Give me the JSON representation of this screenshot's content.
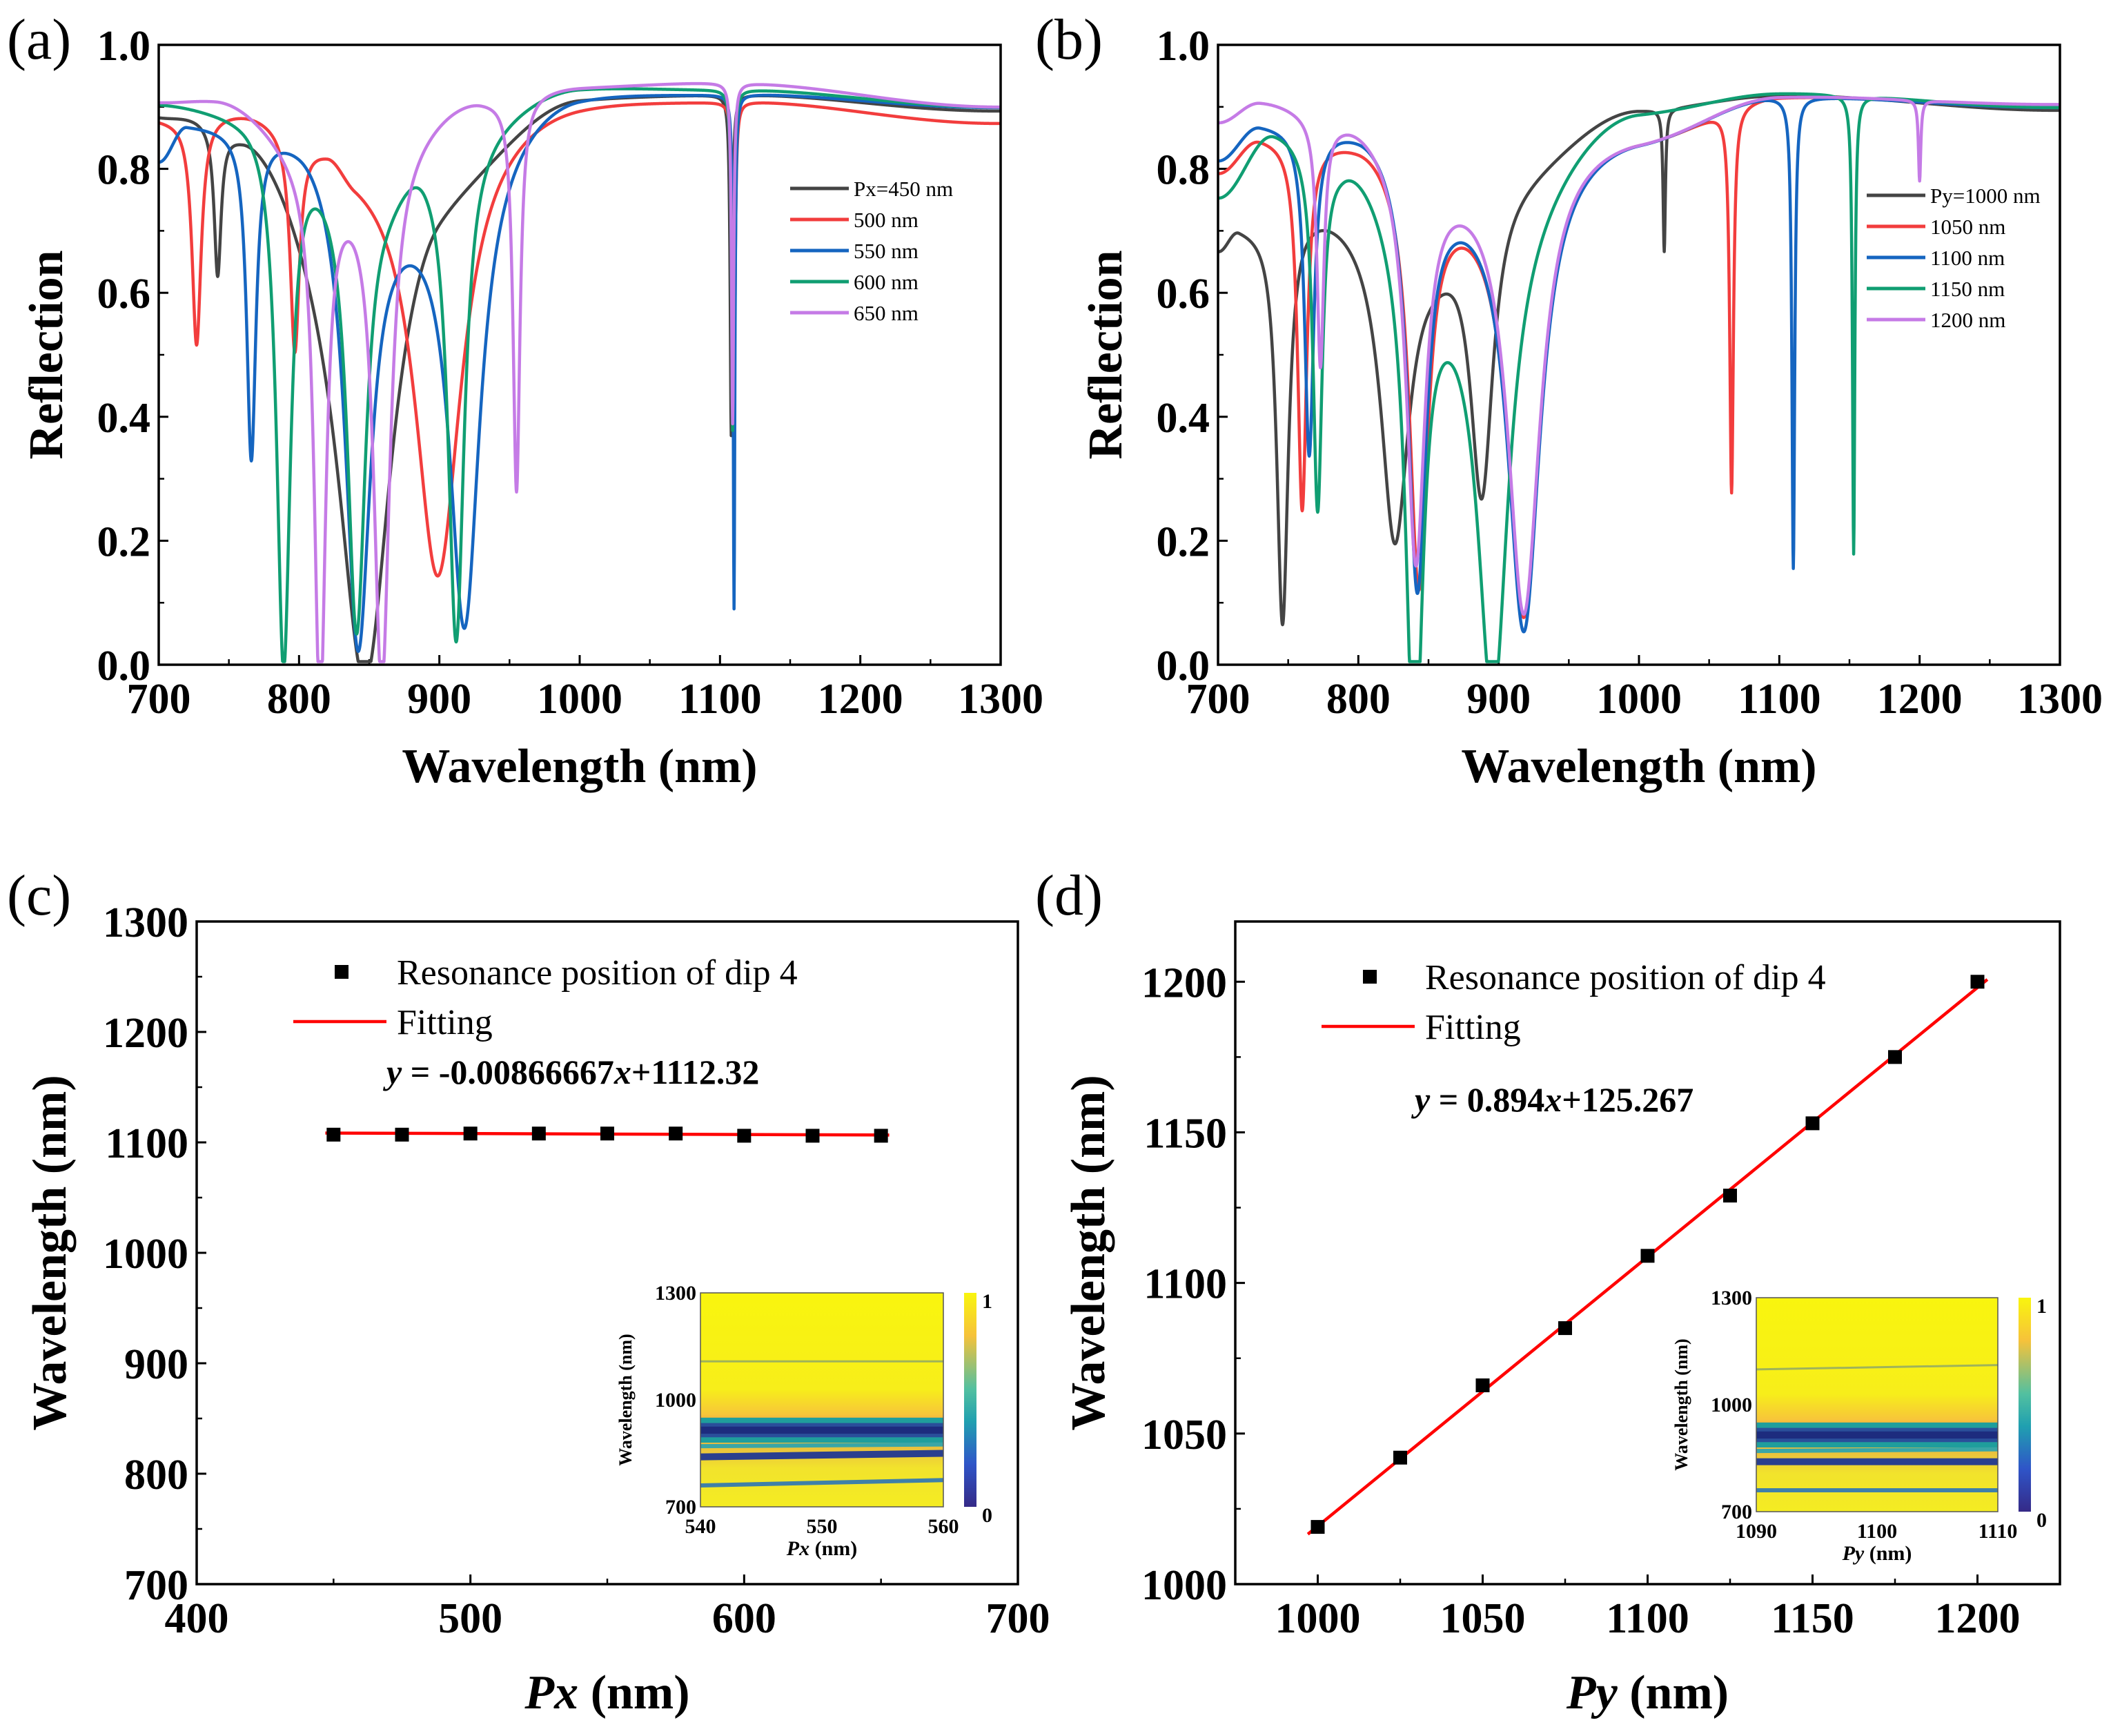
{
  "colors": {
    "black": "#444444",
    "red": "#f23d3d",
    "blue": "#1565c0",
    "green": "#109e72",
    "purple": "#c57be6",
    "fit": "#ff0000",
    "marker": "#000000"
  },
  "chart_data": [
    {
      "id": "a",
      "panel_label": "(a)",
      "type": "line",
      "xlabel": "Wavelength (nm)",
      "ylabel": "Reflection",
      "xlim": [
        700,
        1300
      ],
      "ylim": [
        0.0,
        1.0
      ],
      "xticks": [
        "700",
        "800",
        "900",
        "1000",
        "1100",
        "1200",
        "1300"
      ],
      "yticks": [
        "0.0",
        "0.2",
        "0.4",
        "0.6",
        "0.8",
        "1.0"
      ],
      "legend_position": "right",
      "series": [
        {
          "name": "Px=450 nm",
          "color": "black",
          "base": [
            [
              700,
              0.9
            ],
            [
              725,
              0.905
            ],
            [
              760,
              0.89
            ],
            [
              840,
              0.72
            ],
            [
              900,
              0.82
            ],
            [
              1000,
              0.925
            ],
            [
              1100,
              0.925
            ],
            [
              1300,
              0.895
            ]
          ],
          "dips": [
            [
              742,
              0.24,
              3
            ],
            [
              847,
              0.75,
              22
            ],
            [
              1108,
              0.55,
              0.9
            ]
          ]
        },
        {
          "name": "500 nm",
          "color": "red",
          "base": [
            [
              700,
              0.89
            ],
            [
              760,
              0.905
            ],
            [
              820,
              0.87
            ],
            [
              840,
              0.84
            ],
            [
              1000,
              0.92
            ],
            [
              1100,
              0.915
            ],
            [
              1300,
              0.875
            ]
          ],
          "dips": [
            [
              727,
              0.37,
              4
            ],
            [
              797,
              0.35,
              4
            ],
            [
              899,
              0.72,
              20
            ],
            [
              1110,
              0.55,
              0.9
            ]
          ]
        },
        {
          "name": "550 nm",
          "color": "blue",
          "base": [
            [
              700,
              0.82
            ],
            [
              720,
              0.88
            ],
            [
              800,
              0.88
            ],
            [
              870,
              0.78
            ],
            [
              1000,
              0.93
            ],
            [
              1100,
              0.925
            ],
            [
              1300,
              0.9
            ]
          ],
          "dips": [
            [
              766,
              0.53,
              4
            ],
            [
              842,
              0.77,
              11
            ],
            [
              918,
              0.75,
              13
            ],
            [
              1110,
              0.83,
              0.7
            ]
          ]
        },
        {
          "name": "600 nm",
          "color": "green",
          "base": [
            [
              700,
              0.91
            ],
            [
              760,
              0.9
            ],
            [
              860,
              0.8
            ],
            [
              890,
              0.85
            ],
            [
              1000,
              0.935
            ],
            [
              1100,
              0.93
            ],
            [
              1300,
              0.9
            ]
          ],
          "dips": [
            [
              789,
              0.87,
              6
            ],
            [
              841,
              0.74,
              8
            ],
            [
              912,
              0.81,
              7
            ],
            [
              1109,
              0.55,
              0.9
            ]
          ]
        },
        {
          "name": "650 nm",
          "color": "purple",
          "base": [
            [
              700,
              0.91
            ],
            [
              740,
              0.915
            ],
            [
              830,
              0.8
            ],
            [
              930,
              0.92
            ],
            [
              1000,
              0.935
            ],
            [
              1100,
              0.94
            ],
            [
              1300,
              0.9
            ]
          ],
          "dips": [
            [
              815,
              0.87,
              5
            ],
            [
              859,
              0.85,
              7
            ],
            [
              955,
              0.64,
              3
            ],
            [
              1109,
              0.55,
              0.9
            ]
          ]
        }
      ]
    },
    {
      "id": "b",
      "panel_label": "(b)",
      "type": "line",
      "xlabel": "Wavelength (nm)",
      "ylabel": "Reflection",
      "xlim": [
        700,
        1300
      ],
      "ylim": [
        0.0,
        1.0
      ],
      "xticks": [
        "700",
        "800",
        "900",
        "1000",
        "1100",
        "1200",
        "1300"
      ],
      "yticks": [
        "0.0",
        "0.2",
        "0.4",
        "0.6",
        "0.8",
        "1.0"
      ],
      "legend_position": "right",
      "series": [
        {
          "name": "Py=1000 nm",
          "color": "black",
          "base": [
            [
              700,
              0.68
            ],
            [
              715,
              0.72
            ],
            [
              770,
              0.75
            ],
            [
              850,
              0.7
            ],
            [
              900,
              0.8
            ],
            [
              1000,
              0.9
            ],
            [
              1100,
              0.92
            ],
            [
              1300,
              0.895
            ]
          ],
          "dips": [
            [
              746,
              0.66,
              5
            ],
            [
              826,
              0.5,
              12
            ],
            [
              888,
              0.5,
              10
            ],
            [
              1018,
              0.23,
              1
            ]
          ]
        },
        {
          "name": "1050 nm",
          "color": "red",
          "base": [
            [
              700,
              0.8
            ],
            [
              730,
              0.86
            ],
            [
              800,
              0.86
            ],
            [
              870,
              0.78
            ],
            [
              1000,
              0.86
            ],
            [
              1100,
              0.92
            ],
            [
              1300,
              0.9
            ]
          ],
          "dips": [
            [
              760,
              0.6,
              4
            ],
            [
              843,
              0.66,
              8
            ],
            [
              918,
              0.72,
              14
            ],
            [
              1066,
              0.62,
              1.6
            ]
          ]
        },
        {
          "name": "1100 nm",
          "color": "blue",
          "base": [
            [
              700,
              0.82
            ],
            [
              730,
              0.88
            ],
            [
              800,
              0.88
            ],
            [
              870,
              0.79
            ],
            [
              1000,
              0.86
            ],
            [
              1100,
              0.92
            ],
            [
              1300,
              0.9
            ]
          ],
          "dips": [
            [
              765,
              0.53,
              4
            ],
            [
              842,
              0.68,
              8
            ],
            [
              918,
              0.75,
              14
            ],
            [
              1110,
              0.76,
              1.2
            ]
          ]
        },
        {
          "name": "1150 nm",
          "color": "green",
          "base": [
            [
              700,
              0.76
            ],
            [
              740,
              0.87
            ],
            [
              790,
              0.83
            ],
            [
              860,
              0.66
            ],
            [
              1000,
              0.9
            ],
            [
              1100,
              0.925
            ],
            [
              1300,
              0.9
            ]
          ],
          "dips": [
            [
              771,
              0.58,
              4
            ],
            [
              840,
              0.84,
              7
            ],
            [
              896,
              0.75,
              13
            ],
            [
              1153,
              0.74,
              1
            ]
          ]
        },
        {
          "name": "1200 nm",
          "color": "purple",
          "base": [
            [
              700,
              0.88
            ],
            [
              730,
              0.915
            ],
            [
              790,
              0.89
            ],
            [
              860,
              0.81
            ],
            [
              1000,
              0.86
            ],
            [
              1100,
              0.92
            ],
            [
              1300,
              0.905
            ]
          ],
          "dips": [
            [
              773,
              0.4,
              3
            ],
            [
              841,
              0.64,
              8
            ],
            [
              918,
              0.74,
              14
            ],
            [
              1200,
              0.13,
              1
            ]
          ]
        }
      ]
    },
    {
      "id": "c",
      "panel_label": "(c)",
      "type": "scatter",
      "xlabel_italic": "Px",
      "xlabel_rest": " (nm)",
      "ylabel": "Wavelength (nm)",
      "xlim": [
        400,
        700
      ],
      "ylim": [
        700,
        1300
      ],
      "xticks": [
        "400",
        "500",
        "600",
        "700"
      ],
      "yticks": [
        "700",
        "800",
        "900",
        "1000",
        "1100",
        "1200",
        "1300"
      ],
      "legend": {
        "markers": "Resonance position of dip 4",
        "fit": "Fitting"
      },
      "equation": {
        "y": "y",
        "mid": " = -0.00866667",
        "x": "x",
        "tail": "+1112.32"
      },
      "fit": {
        "slope": -0.00866667,
        "intercept": 1112.32
      },
      "x": [
        450,
        475,
        500,
        525,
        550,
        575,
        600,
        625,
        650
      ],
      "y": [
        1107,
        1107,
        1108,
        1108,
        1108,
        1108,
        1106,
        1106,
        1106
      ],
      "inset": {
        "type": "heatmap",
        "xlabel_italic": "Px",
        "xlabel_rest": " (nm)",
        "ylabel": "Wavelength (nm)",
        "xlim": [
          540,
          560
        ],
        "ylim": [
          700,
          1300
        ],
        "xticks": [
          "540",
          "550",
          "560"
        ],
        "yticks": [
          "700",
          "1000",
          "1300"
        ],
        "colorbar_ticks": [
          "0",
          "1"
        ]
      }
    },
    {
      "id": "d",
      "panel_label": "(d)",
      "type": "scatter",
      "xlabel_italic": "Py",
      "xlabel_rest": " (nm)",
      "ylabel": "Wavelength (nm)",
      "xlim": [
        975,
        1225
      ],
      "ylim": [
        1000,
        1220
      ],
      "xticks": [
        "1000",
        "1050",
        "1100",
        "1150",
        "1200"
      ],
      "yticks": [
        "1000",
        "1050",
        "1100",
        "1150",
        "1200"
      ],
      "legend": {
        "markers": "Resonance position of dip 4",
        "fit": "Fitting"
      },
      "equation": {
        "y": "y",
        "mid": " = 0.894",
        "x": "x",
        "tail": "+125.267"
      },
      "fit": {
        "slope": 0.894,
        "intercept": 125.267
      },
      "x": [
        1000,
        1025,
        1050,
        1075,
        1100,
        1125,
        1150,
        1175,
        1200
      ],
      "y": [
        1019,
        1042,
        1066,
        1085,
        1109,
        1129,
        1153,
        1175,
        1200
      ],
      "inset": {
        "type": "heatmap",
        "xlabel_italic": "Py",
        "xlabel_rest": " (nm)",
        "ylabel": "Wavelength (nm)",
        "xlim": [
          1090,
          1110
        ],
        "ylim": [
          700,
          1300
        ],
        "xticks": [
          "1090",
          "1100",
          "1110"
        ],
        "yticks": [
          "700",
          "1000",
          "1300"
        ],
        "colorbar_ticks": [
          "0",
          "1"
        ]
      }
    }
  ]
}
